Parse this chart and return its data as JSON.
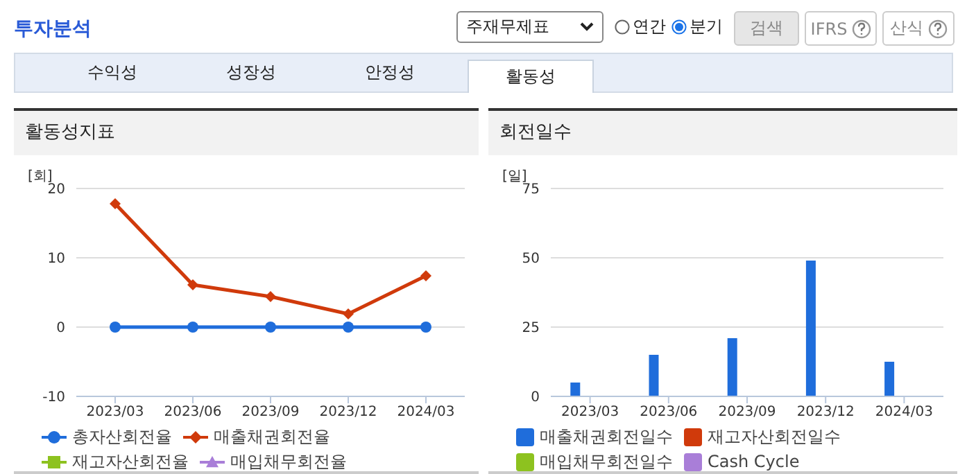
{
  "chart_data": [
    {
      "type": "other",
      "title": "투자분석",
      "annotations": [
        "주재무제표",
        "연간",
        "분기",
        "검색",
        "IFRS",
        "산식",
        "수익성",
        "성장성",
        "안정성",
        "활동성"
      ]
    },
    {
      "type": "line",
      "title": "활동성지표",
      "ylabel": "[회]",
      "categories": [
        "2023/03",
        "2023/06",
        "2023/09",
        "2023/12",
        "2024/03"
      ],
      "ylim": [
        -10,
        20
      ],
      "yticks": [
        -10,
        0,
        10,
        20
      ],
      "grid": "y",
      "legend": "bottom",
      "line_style": "solid",
      "series": [
        {
          "name": "총자산회전율",
          "color": "#1f6ddb",
          "marker": "circle",
          "values": [
            0,
            0,
            0,
            0,
            0
          ]
        },
        {
          "name": "매출채권회전율",
          "color": "#d03a0b",
          "marker": "diamond",
          "values": [
            17.8,
            6.1,
            4.4,
            1.9,
            7.4
          ]
        },
        {
          "name": "재고자산회전율",
          "color": "#8dc21f",
          "marker": "square",
          "values": [
            null,
            null,
            null,
            null,
            null
          ]
        },
        {
          "name": "매입채무회전율",
          "color": "#a97ed8",
          "marker": "triangle",
          "values": [
            null,
            null,
            null,
            null,
            null
          ]
        }
      ]
    },
    {
      "type": "bar",
      "title": "회전일수",
      "ylabel": "[일]",
      "categories": [
        "2023/03",
        "2023/06",
        "2023/09",
        "2023/12",
        "2024/03"
      ],
      "ylim": [
        0,
        75
      ],
      "yticks": [
        0,
        25,
        50,
        75
      ],
      "grid": "y",
      "legend": "bottom",
      "series": [
        {
          "name": "매출채권회전일수",
          "color": "#1f6ddb",
          "values": [
            5,
            15,
            21,
            49,
            12.5
          ]
        },
        {
          "name": "재고자산회전일수",
          "color": "#d03a0b",
          "values": [
            null,
            null,
            null,
            null,
            null
          ]
        },
        {
          "name": "매입채무회전일수",
          "color": "#8dc21f",
          "values": [
            null,
            null,
            null,
            null,
            null
          ]
        },
        {
          "name": "Cash Cycle",
          "color": "#a97ed8",
          "values": [
            null,
            null,
            null,
            null,
            null
          ]
        }
      ]
    }
  ]
}
